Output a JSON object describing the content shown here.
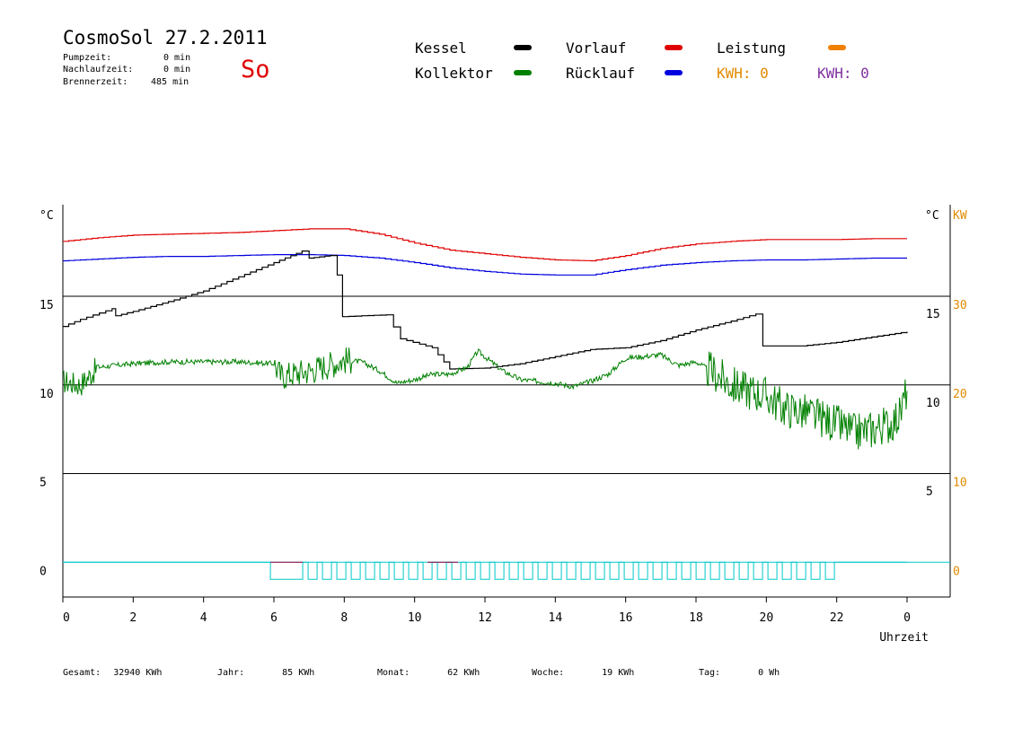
{
  "header": {
    "title": "CosmoSol 27.2.2011",
    "day": "So",
    "times": [
      {
        "label": "Pumpzeit:",
        "value": "0 min"
      },
      {
        "label": "Nachlaufzeit:",
        "value": "0 min"
      },
      {
        "label": "Brennerzeit:",
        "value": "485 min"
      }
    ]
  },
  "legend": {
    "kessel": {
      "label": "Kessel",
      "color": "#000000"
    },
    "vorlauf": {
      "label": "Vorlauf",
      "color": "#e00000"
    },
    "leistung": {
      "label": "Leistung",
      "color": "#f08000"
    },
    "kollektor": {
      "label": "Kollektor",
      "color": "#008000"
    },
    "ruecklauf": {
      "label": "Rücklauf",
      "color": "#0000e0"
    },
    "kwh1": {
      "label": "KWH:",
      "value": "0",
      "color": "#e08a00"
    },
    "kwh2": {
      "label": "KWH:",
      "value": "0",
      "color": "#8030a0"
    }
  },
  "axes": {
    "left_unit": "°C",
    "right_unit": "°C",
    "kw_unit": "KW",
    "xlabel": "Uhrzeit",
    "x_ticks": [
      "0",
      "2",
      "4",
      "6",
      "8",
      "10",
      "12",
      "14",
      "16",
      "18",
      "20",
      "22",
      "0"
    ],
    "left_ticks": [
      {
        "v": 15,
        "label": "15"
      },
      {
        "v": 10,
        "label": "10"
      },
      {
        "v": 5,
        "label": "5"
      },
      {
        "v": 0,
        "label": "0"
      }
    ],
    "right_ticks": [
      {
        "v": 15,
        "label": "15"
      },
      {
        "v": 10,
        "label": "10"
      },
      {
        "v": 5,
        "label": "5"
      }
    ],
    "kw_ticks": [
      {
        "v": 15,
        "label": "30"
      },
      {
        "v": 10,
        "label": "20"
      },
      {
        "v": 5,
        "label": "10"
      },
      {
        "v": 0,
        "label": "0"
      }
    ]
  },
  "stats": {
    "gesamt": {
      "label": "Gesamt:",
      "value": "32940 KWh"
    },
    "jahr": {
      "label": "Jahr:",
      "value": "85 KWh"
    },
    "monat": {
      "label": "Monat:",
      "value": "62 KWh"
    },
    "woche": {
      "label": "Woche:",
      "value": "19 KWh"
    },
    "tag": {
      "label": "Tag:",
      "value": "0 Wh"
    }
  },
  "chart_data": {
    "type": "line",
    "xlabel": "Uhrzeit",
    "x_unit": "hour",
    "xlim": [
      0,
      24
    ],
    "ylim": [
      -2,
      20
    ],
    "series": [
      {
        "name": "Vorlauf",
        "color": "#e00000",
        "points": [
          [
            0,
            18.1
          ],
          [
            1,
            18.3
          ],
          [
            2,
            18.45
          ],
          [
            3,
            18.5
          ],
          [
            4,
            18.55
          ],
          [
            5,
            18.6
          ],
          [
            6,
            18.7
          ],
          [
            7,
            18.8
          ],
          [
            8,
            18.8
          ],
          [
            9,
            18.5
          ],
          [
            10,
            18.0
          ],
          [
            11,
            17.6
          ],
          [
            12,
            17.4
          ],
          [
            13,
            17.2
          ],
          [
            14,
            17.05
          ],
          [
            15,
            17.0
          ],
          [
            16,
            17.3
          ],
          [
            17,
            17.7
          ],
          [
            18,
            17.95
          ],
          [
            19,
            18.1
          ],
          [
            20,
            18.2
          ],
          [
            21,
            18.2
          ],
          [
            22,
            18.2
          ],
          [
            23,
            18.25
          ],
          [
            24,
            18.25
          ]
        ]
      },
      {
        "name": "Rücklauf",
        "color": "#0000e0",
        "points": [
          [
            0,
            17.0
          ],
          [
            1,
            17.1
          ],
          [
            2,
            17.2
          ],
          [
            3,
            17.25
          ],
          [
            4,
            17.25
          ],
          [
            5,
            17.3
          ],
          [
            6,
            17.35
          ],
          [
            7,
            17.35
          ],
          [
            8,
            17.3
          ],
          [
            9,
            17.15
          ],
          [
            10,
            16.9
          ],
          [
            11,
            16.6
          ],
          [
            12,
            16.4
          ],
          [
            13,
            16.25
          ],
          [
            14,
            16.2
          ],
          [
            15,
            16.2
          ],
          [
            16,
            16.5
          ],
          [
            17,
            16.75
          ],
          [
            18,
            16.9
          ],
          [
            19,
            17.0
          ],
          [
            20,
            17.05
          ],
          [
            21,
            17.05
          ],
          [
            22,
            17.1
          ],
          [
            23,
            17.15
          ],
          [
            24,
            17.15
          ]
        ]
      },
      {
        "name": "Kessel",
        "color": "#000000",
        "points": [
          [
            0,
            13.3
          ],
          [
            0.5,
            13.7
          ],
          [
            1.4,
            14.3
          ],
          [
            1.5,
            13.9
          ],
          [
            2,
            14.15
          ],
          [
            3,
            14.7
          ],
          [
            4,
            15.3
          ],
          [
            5,
            16.1
          ],
          [
            6,
            16.9
          ],
          [
            6.8,
            17.55
          ],
          [
            7,
            17.15
          ],
          [
            7.6,
            17.3
          ],
          [
            7.8,
            16.2
          ],
          [
            7.95,
            13.85
          ],
          [
            8.5,
            13.9
          ],
          [
            9.2,
            13.95
          ],
          [
            9.6,
            12.6
          ],
          [
            10.5,
            12.1
          ],
          [
            11,
            10.9
          ],
          [
            12,
            10.95
          ],
          [
            13,
            11.2
          ],
          [
            14,
            11.6
          ],
          [
            15,
            12.0
          ],
          [
            16,
            12.1
          ],
          [
            17,
            12.5
          ],
          [
            18,
            13.1
          ],
          [
            19,
            13.6
          ],
          [
            19.7,
            14.0
          ],
          [
            19.9,
            12.2
          ],
          [
            21,
            12.2
          ],
          [
            22,
            12.4
          ],
          [
            23,
            12.7
          ],
          [
            24,
            13.0
          ]
        ]
      },
      {
        "name": "Kollektor",
        "color": "#008000",
        "points": [
          [
            0,
            10.2
          ],
          [
            0.5,
            10.0
          ],
          [
            1,
            11.0
          ],
          [
            2,
            11.2
          ],
          [
            3,
            11.3
          ],
          [
            4,
            11.3
          ],
          [
            5,
            11.3
          ],
          [
            6,
            11.2
          ],
          [
            6.2,
            10.5
          ],
          [
            7,
            10.8
          ],
          [
            8,
            11.4
          ],
          [
            8.5,
            11.3
          ],
          [
            9,
            10.8
          ],
          [
            9.5,
            10.1
          ],
          [
            10,
            10.3
          ],
          [
            10.5,
            10.6
          ],
          [
            11,
            10.6
          ],
          [
            11.5,
            11.0
          ],
          [
            11.8,
            11.9
          ],
          [
            12.5,
            10.8
          ],
          [
            13,
            10.3
          ],
          [
            14,
            10.1
          ],
          [
            14.5,
            9.9
          ],
          [
            15,
            10.2
          ],
          [
            15.5,
            10.6
          ],
          [
            16,
            11.5
          ],
          [
            17,
            11.7
          ],
          [
            17.5,
            11.1
          ],
          [
            18,
            11.3
          ],
          [
            18.5,
            10.7
          ],
          [
            19,
            10.0
          ],
          [
            20,
            9.4
          ],
          [
            20.5,
            8.7
          ],
          [
            21,
            8.5
          ],
          [
            22,
            7.8
          ],
          [
            22.5,
            7.3
          ],
          [
            23,
            7.5
          ],
          [
            23.5,
            7.8
          ],
          [
            23.8,
            8.3
          ],
          [
            24,
            9.8
          ]
        ]
      }
    ],
    "leistung": {
      "name": "Leistung",
      "color": "#f08000",
      "values": []
    },
    "pump_signal": {
      "color": "#00c8c8",
      "on_from": 5.9,
      "on_to": 21.8
    }
  }
}
